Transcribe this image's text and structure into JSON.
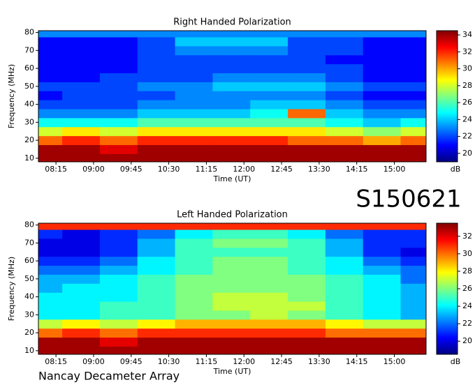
{
  "label": "S150621",
  "observatory": "Nancay Decameter Array",
  "chart_data": [
    {
      "type": "heatmap",
      "title": "Right Handed Polarization",
      "xlabel": "Time (UT)",
      "ylabel": "Frequency (MHz)",
      "colormap": "jet",
      "x": [
        480,
        525,
        570,
        615,
        660,
        705,
        750,
        795,
        840,
        885,
        930
      ],
      "y": [
        10,
        15,
        20,
        25,
        30,
        35,
        40,
        45,
        50,
        55,
        60,
        65,
        70,
        75,
        80
      ],
      "z": [
        [
          34,
          34,
          34,
          34,
          34,
          34,
          34,
          34,
          34,
          34,
          34
        ],
        [
          34,
          34,
          33,
          34,
          34,
          34,
          34,
          34,
          34,
          34,
          34
        ],
        [
          31,
          32,
          31,
          32,
          32,
          32,
          32,
          31,
          31,
          30,
          31
        ],
        [
          28,
          29,
          28,
          29,
          29,
          29,
          29,
          29,
          28,
          27,
          28
        ],
        [
          25,
          25,
          25,
          26,
          26,
          26,
          26,
          26,
          25,
          24,
          25
        ],
        [
          23,
          23,
          23,
          24,
          24,
          24,
          25,
          31,
          24,
          23,
          23
        ],
        [
          22,
          22,
          22,
          23,
          23,
          23,
          24,
          24,
          23,
          22,
          22
        ],
        [
          21,
          22,
          22,
          22,
          23,
          23,
          23,
          23,
          22,
          21,
          21
        ],
        [
          22,
          22,
          22,
          23,
          23,
          24,
          24,
          24,
          23,
          22,
          22
        ],
        [
          21,
          21,
          22,
          22,
          22,
          23,
          23,
          23,
          22,
          21,
          21
        ],
        [
          21,
          21,
          21,
          22,
          22,
          22,
          22,
          22,
          22,
          21,
          21
        ],
        [
          21,
          21,
          21,
          22,
          22,
          22,
          22,
          22,
          21,
          21,
          21
        ],
        [
          21,
          21,
          21,
          22,
          23,
          23,
          23,
          22,
          22,
          21,
          21
        ],
        [
          21,
          21,
          21,
          22,
          24,
          24,
          24,
          22,
          22,
          21,
          21
        ],
        [
          23,
          23,
          23,
          23,
          23,
          23,
          23,
          23,
          23,
          23,
          23
        ]
      ],
      "xlim": [
        474,
        938
      ],
      "ylim": [
        8,
        81
      ],
      "xticks": [
        {
          "value": 495,
          "label": "08:15"
        },
        {
          "value": 540,
          "label": "09:00"
        },
        {
          "value": 585,
          "label": "09:45"
        },
        {
          "value": 630,
          "label": "10:30"
        },
        {
          "value": 675,
          "label": "11:15"
        },
        {
          "value": 720,
          "label": "12:00"
        },
        {
          "value": 765,
          "label": "12:45"
        },
        {
          "value": 810,
          "label": "13:30"
        },
        {
          "value": 855,
          "label": "14:15"
        },
        {
          "value": 900,
          "label": "15:00"
        }
      ],
      "yticks": [
        10,
        20,
        30,
        40,
        50,
        60,
        70,
        80
      ],
      "colorbar": {
        "label": "dB",
        "lim": [
          19,
          34.5
        ],
        "ticks": [
          20,
          22,
          24,
          26,
          28,
          30,
          32,
          34
        ]
      }
    },
    {
      "type": "heatmap",
      "title": "Left Handed Polarization",
      "xlabel": "Time (UT)",
      "ylabel": "Frequency (MHz)",
      "colormap": "jet",
      "x": [
        480,
        525,
        570,
        615,
        660,
        705,
        750,
        795,
        840,
        885,
        930
      ],
      "y": [
        10,
        15,
        20,
        25,
        30,
        35,
        40,
        45,
        50,
        55,
        60,
        65,
        70,
        75,
        80
      ],
      "z": [
        [
          33,
          33,
          33,
          33,
          33,
          33,
          33,
          33,
          33,
          33,
          33
        ],
        [
          33,
          33,
          32,
          33,
          33,
          33,
          33,
          33,
          33,
          33,
          33
        ],
        [
          30,
          31,
          30,
          31,
          31,
          31,
          31,
          31,
          30,
          30,
          30
        ],
        [
          27,
          28,
          27,
          28,
          29,
          29,
          29,
          29,
          28,
          27,
          27
        ],
        [
          24,
          24,
          25,
          25,
          26,
          26,
          27,
          26,
          25,
          24,
          23
        ],
        [
          24,
          24,
          25,
          25,
          26,
          27,
          27,
          27,
          25,
          24,
          23
        ],
        [
          24,
          24,
          24,
          25,
          26,
          27,
          27,
          26,
          25,
          24,
          23
        ],
        [
          23,
          24,
          24,
          25,
          26,
          26,
          26,
          26,
          25,
          24,
          23
        ],
        [
          23,
          23,
          24,
          25,
          26,
          26,
          26,
          26,
          25,
          24,
          22
        ],
        [
          22,
          22,
          23,
          24,
          25,
          26,
          26,
          25,
          24,
          23,
          22
        ],
        [
          21,
          21,
          22,
          24,
          25,
          26,
          26,
          25,
          24,
          22,
          21
        ],
        [
          20,
          20,
          21,
          23,
          25,
          25,
          25,
          25,
          23,
          21,
          20
        ],
        [
          20,
          20,
          21,
          23,
          25,
          26,
          26,
          25,
          23,
          21,
          21
        ],
        [
          21,
          20,
          21,
          22,
          24,
          25,
          25,
          24,
          22,
          21,
          21
        ],
        [
          31,
          31,
          31,
          31,
          31,
          31,
          31,
          31,
          31,
          31,
          31
        ]
      ],
      "xlim": [
        474,
        938
      ],
      "ylim": [
        8,
        81
      ],
      "xticks": [
        {
          "value": 495,
          "label": "08:15"
        },
        {
          "value": 540,
          "label": "09:00"
        },
        {
          "value": 585,
          "label": "09:45"
        },
        {
          "value": 630,
          "label": "10:30"
        },
        {
          "value": 675,
          "label": "11:15"
        },
        {
          "value": 720,
          "label": "12:00"
        },
        {
          "value": 765,
          "label": "12:45"
        },
        {
          "value": 810,
          "label": "13:30"
        },
        {
          "value": 855,
          "label": "14:15"
        },
        {
          "value": 900,
          "label": "15:00"
        }
      ],
      "yticks": [
        10,
        20,
        30,
        40,
        50,
        60,
        70,
        80
      ],
      "colorbar": {
        "label": "dB",
        "lim": [
          18.5,
          33.5
        ],
        "ticks": [
          20,
          22,
          24,
          26,
          28,
          30,
          32
        ]
      }
    }
  ]
}
